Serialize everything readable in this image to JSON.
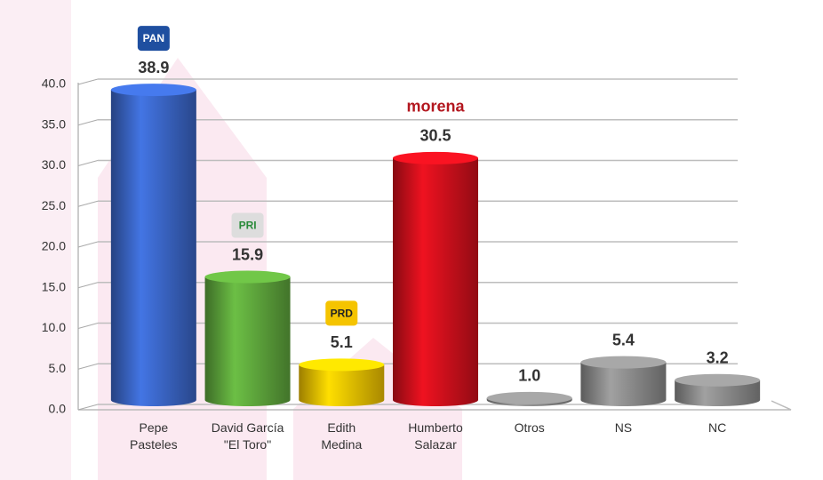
{
  "chart_data": {
    "type": "bar",
    "categories": [
      "Pepe\nPasteles",
      "David García\n\"El Toro\"",
      "Edith\nMedina",
      "Humberto\nSalazar",
      "Otros",
      "NS",
      "NC"
    ],
    "values": [
      38.9,
      15.9,
      5.1,
      30.5,
      1.0,
      5.4,
      3.2
    ],
    "value_labels": [
      "38.9",
      "15.9",
      "5.1",
      "30.5",
      "1.0",
      "5.4",
      "3.2"
    ],
    "colors": [
      "#3a66c6",
      "#5ea63c",
      "#f2c200",
      "#d0101c",
      "#8c8c8c",
      "#8c8c8c",
      "#8c8c8c"
    ],
    "party_logos": [
      "PAN",
      "PRI",
      "PRD",
      "morena",
      null,
      null,
      null
    ],
    "ylim": [
      0,
      40
    ],
    "yticks": [
      {
        "value": 0,
        "label": "0.0"
      },
      {
        "value": 5,
        "label": "5.0"
      },
      {
        "value": 10,
        "label": "10.0"
      },
      {
        "value": 15,
        "label": "15.0"
      },
      {
        "value": 20,
        "label": "20.0"
      },
      {
        "value": 25,
        "label": "25.0"
      },
      {
        "value": 30,
        "label": "30.0"
      },
      {
        "value": 35,
        "label": "35.0"
      },
      {
        "value": 40,
        "label": "40.0"
      }
    ],
    "grid": true
  }
}
